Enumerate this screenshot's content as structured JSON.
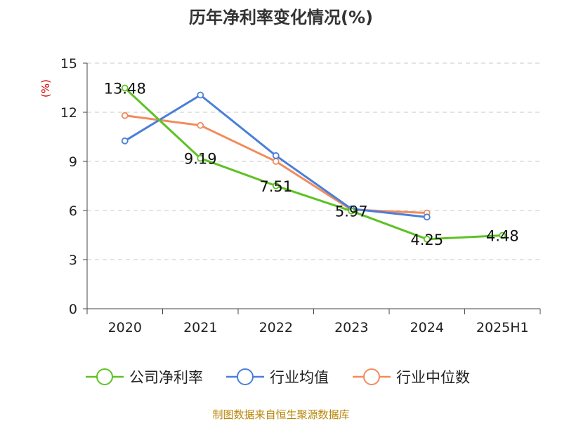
{
  "chart_data": {
    "type": "line",
    "title": "历年净利率变化情况(%)",
    "ylabel": "(%)",
    "xlabel": "",
    "categories": [
      "2020",
      "2021",
      "2022",
      "2023",
      "2024",
      "2025H1"
    ],
    "ylim": [
      0,
      15
    ],
    "yticks": [
      0,
      3,
      6,
      9,
      12,
      15
    ],
    "grid": true,
    "legend_position": "bottom",
    "series": [
      {
        "name": "公司净利率",
        "color": "#5dc223",
        "values": [
          13.48,
          9.19,
          7.51,
          5.97,
          4.25,
          4.48
        ],
        "labels": [
          "13.48",
          "9.19",
          "7.51",
          "5.97",
          "4.25",
          "4.48"
        ]
      },
      {
        "name": "行业均值",
        "color": "#4a7fd9",
        "values": [
          10.25,
          13.05,
          9.35,
          6.1,
          5.6,
          null
        ]
      },
      {
        "name": "行业中位数",
        "color": "#f28b5b",
        "values": [
          11.8,
          11.2,
          9.0,
          6.05,
          5.85,
          null
        ]
      }
    ]
  },
  "source": "制图数据来自恒生聚源数据库"
}
